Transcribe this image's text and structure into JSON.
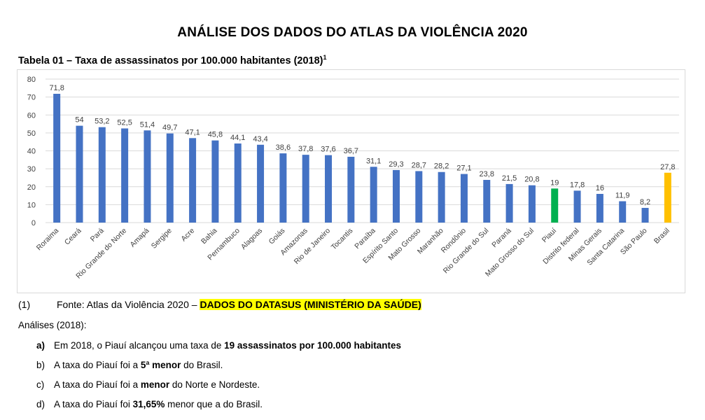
{
  "doc": {
    "title": "ANÁLISE DOS DADOS DO ATLAS DA VIOLÊNCIA 2020",
    "table_title": "Tabela 01 – Taxa de assassinatos por 100.000 habitantes (2018)",
    "table_title_sup": "1",
    "source": {
      "num": "(1)",
      "text": "Fonte: Atlas da Violência 2020 – ",
      "highlight": "DADOS DO DATASUS (MINISTÉRIO DA SAÚDE)"
    },
    "analyses_title": "Análises (2018):",
    "items": [
      {
        "letter": "a)",
        "pre": "Em 2018, o Piauí alcançou uma taxa de ",
        "bold": "19 assassinatos por 100.000 habitantes",
        "post": ""
      },
      {
        "letter": "b)",
        "pre": "A taxa do Piauí foi a ",
        "bold": "5ª menor",
        "post": " do Brasil."
      },
      {
        "letter": "c)",
        "pre": "A taxa do Piauí foi a ",
        "bold": "menor",
        "post": " do Norte e Nordeste."
      },
      {
        "letter": "d)",
        "pre": "A taxa do Piauí foi ",
        "bold": "31,65%",
        "post": " menor que a do Brasil."
      }
    ]
  },
  "chart_data": {
    "type": "bar",
    "categories": [
      "Roraima",
      "Ceará",
      "Pará",
      "Rio Grande do Norte",
      "Amapá",
      "Sergipe",
      "Acre",
      "Bahia",
      "Pernambuco",
      "Alagoas",
      "Goiás",
      "Amazonas",
      "Rio de Janeiro",
      "Tocantis",
      "Paraíba",
      "Espírito Santo",
      "Mato Grosso",
      "Maranhão",
      "Rondônio",
      "Rio Grande do Sul",
      "Paraná",
      "Mato Grosso do Sul",
      "Piauí",
      "Distrito federal",
      "Minas Gerais",
      "Santa Catarina",
      "São Paulo",
      "Brasil"
    ],
    "values": [
      71.8,
      54,
      53.2,
      52.5,
      51.4,
      49.7,
      47.1,
      45.8,
      44.1,
      43.4,
      38.6,
      37.8,
      37.6,
      36.7,
      31.1,
      29.3,
      28.7,
      28.2,
      27.1,
      23.8,
      21.5,
      20.8,
      19,
      17.8,
      16,
      11.9,
      8.2,
      27.8
    ],
    "value_labels": [
      "71,8",
      "54",
      "53,2",
      "52,5",
      "51,4",
      "49,7",
      "47,1",
      "45,8",
      "44,1",
      "43,4",
      "38,6",
      "37,8",
      "37,6",
      "36,7",
      "31,1",
      "29,3",
      "28,7",
      "28,2",
      "27,1",
      "23,8",
      "21,5",
      "20,8",
      "19",
      "17,8",
      "16",
      "11,9",
      "8,2",
      "27,8"
    ],
    "ylim": [
      0,
      80
    ],
    "yticks": [
      "0",
      "10",
      "20",
      "30",
      "40",
      "50",
      "60",
      "70",
      "80"
    ],
    "grid": true,
    "legend": "none",
    "colors": {
      "default": "#4472c4",
      "highlight_piaui": "#00b050",
      "highlight_brasil": "#ffc000"
    },
    "highlight": {
      "Piauí": "#00b050",
      "Brasil": "#ffc000"
    }
  }
}
